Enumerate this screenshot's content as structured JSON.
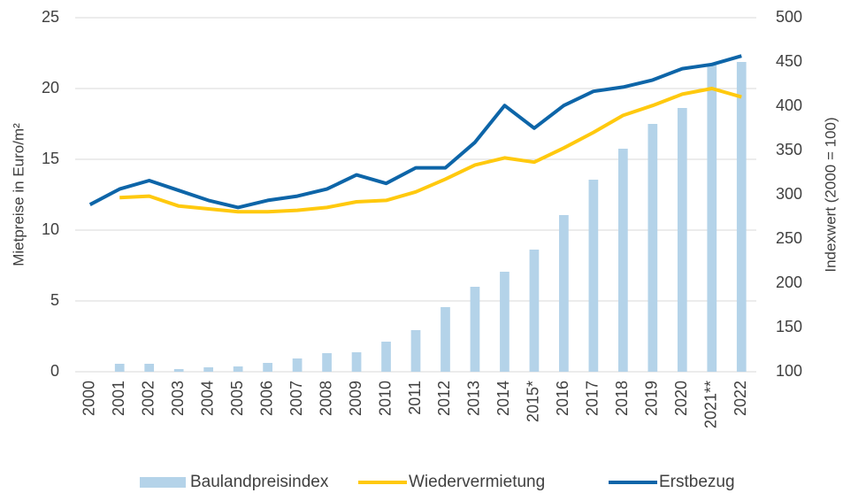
{
  "chart_data": {
    "type": "combo",
    "ylabel": "Mietpreise in Euro/m²",
    "y2label": "Indexwert (2000 = 100)",
    "categories": [
      "2000",
      "2001",
      "2002",
      "2003",
      "2004",
      "2005",
      "2006",
      "2007",
      "2008",
      "2009",
      "2010",
      "2011",
      "2012",
      "2013",
      "2014",
      "2015*",
      "2016",
      "2017",
      "2018",
      "2019",
      "2020",
      "2021**",
      "2022"
    ],
    "series": [
      {
        "name": "Baulandpreisindex",
        "type": "bar",
        "axis": "y2",
        "color": "#b4d3e9",
        "values": [
          100,
          109,
          109,
          103,
          105,
          106,
          110,
          115,
          121,
          122,
          134,
          147,
          173,
          196,
          213,
          238,
          277,
          317,
          352,
          380,
          398,
          447,
          450
        ]
      },
      {
        "name": "Wiedervermietung",
        "type": "line",
        "color": "#ffc90e",
        "values": [
          null,
          12.3,
          12.4,
          11.7,
          11.5,
          11.3,
          11.3,
          11.4,
          11.6,
          12.0,
          12.1,
          12.7,
          13.6,
          14.6,
          15.1,
          14.8,
          15.8,
          16.9,
          18.1,
          18.8,
          19.6,
          20.0,
          19.4
        ]
      },
      {
        "name": "Erstbezug",
        "type": "line",
        "color": "#0d65a8",
        "values": [
          11.8,
          12.9,
          13.5,
          12.8,
          12.1,
          11.6,
          12.1,
          12.4,
          12.9,
          13.9,
          13.3,
          14.4,
          14.4,
          16.2,
          18.8,
          17.2,
          18.8,
          19.8,
          20.1,
          20.6,
          21.4,
          21.7,
          22.3
        ]
      }
    ],
    "ylim": [
      0,
      25
    ],
    "yticks": [
      0,
      5,
      10,
      15,
      20,
      25
    ],
    "y2lim": [
      100,
      500
    ],
    "y2ticks": [
      100,
      150,
      200,
      250,
      300,
      350,
      400,
      450,
      500
    ],
    "grid": true,
    "legend": "bottom"
  }
}
